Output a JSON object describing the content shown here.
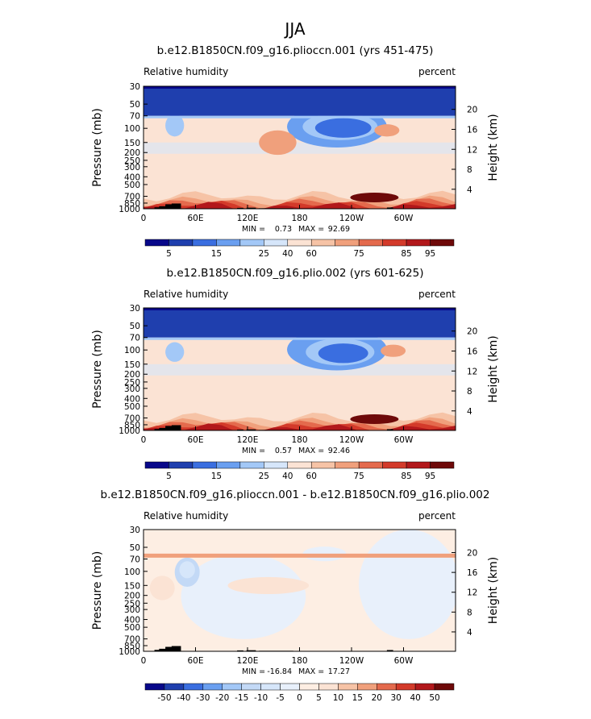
{
  "main_title": "JJA",
  "chart_data": [
    {
      "type": "heatmap",
      "title": "b.e12.B1850CN.f09_g16.plioccn.001 (yrs 451-475)",
      "left_label": "Relative humidity",
      "right_label": "percent",
      "ylabel": "Pressure (mb)",
      "ylabel_right": "Height (km)",
      "x_ticks": [
        "0",
        "60E",
        "120E",
        "180",
        "120W",
        "60W"
      ],
      "y_ticks": [
        "30",
        "50",
        "70",
        "100",
        "150",
        "200",
        "250",
        "300",
        "400",
        "500",
        "700",
        "850",
        "1000"
      ],
      "height_ticks": [
        "20",
        "16",
        "12",
        "8",
        "4"
      ],
      "stats": {
        "min_label": "MIN =",
        "min": "0.73",
        "max_label": "MAX =",
        "max": "92.69"
      },
      "colorbar_levels": [
        "5",
        "15",
        "25",
        "40",
        "60",
        "75",
        "85",
        "95"
      ],
      "colorbar_colors": [
        "#08088a",
        "#1f3fae",
        "#3a6ee0",
        "#6a9ff0",
        "#a3c8f7",
        "#d6e6fa",
        "#fbe3d4",
        "#f6c3a6",
        "#f0a07c",
        "#e46a4d",
        "#d33a2a",
        "#b2181b",
        "#6e0909"
      ],
      "contours": [
        {
          "level": 15,
          "cx": 0.62,
          "cy": 0.33,
          "rx": 0.16,
          "ry": 0.17
        },
        {
          "level": 25,
          "cx": 0.63,
          "cy": 0.33,
          "rx": 0.12,
          "ry": 0.11
        },
        {
          "level": 5,
          "cx": 0.64,
          "cy": 0.34,
          "rx": 0.09,
          "ry": 0.08
        },
        {
          "level": 25,
          "cx": 0.1,
          "cy": 0.32,
          "rx": 0.03,
          "ry": 0.09
        },
        {
          "level": 85,
          "cx": 0.2,
          "cy": 0.15,
          "rx": 0.06,
          "ry": 0.06
        },
        {
          "level": 75,
          "cx": 0.43,
          "cy": 0.46,
          "rx": 0.06,
          "ry": 0.1
        },
        {
          "level": 75,
          "cx": 0.78,
          "cy": 0.36,
          "rx": 0.04,
          "ry": 0.05
        }
      ]
    },
    {
      "type": "heatmap",
      "title": "b.e12.B1850CN.f09_g16.plio.002 (yrs 601-625)",
      "left_label": "Relative humidity",
      "right_label": "percent",
      "ylabel": "Pressure (mb)",
      "ylabel_right": "Height (km)",
      "x_ticks": [
        "0",
        "60E",
        "120E",
        "180",
        "120W",
        "60W"
      ],
      "y_ticks": [
        "30",
        "50",
        "70",
        "100",
        "150",
        "200",
        "250",
        "300",
        "400",
        "500",
        "700",
        "850",
        "1000"
      ],
      "height_ticks": [
        "20",
        "16",
        "12",
        "8",
        "4"
      ],
      "stats": {
        "min_label": "MIN =",
        "min": "0.57",
        "max_label": "MAX =",
        "max": "92.46"
      },
      "colorbar_levels": [
        "5",
        "15",
        "25",
        "40",
        "60",
        "75",
        "85",
        "95"
      ],
      "colorbar_colors": [
        "#08088a",
        "#1f3fae",
        "#3a6ee0",
        "#6a9ff0",
        "#a3c8f7",
        "#d6e6fa",
        "#fbe3d4",
        "#f6c3a6",
        "#f0a07c",
        "#e46a4d",
        "#d33a2a",
        "#b2181b",
        "#6e0909"
      ],
      "contours": [
        {
          "level": 15,
          "cx": 0.62,
          "cy": 0.34,
          "rx": 0.16,
          "ry": 0.17
        },
        {
          "level": 25,
          "cx": 0.63,
          "cy": 0.36,
          "rx": 0.11,
          "ry": 0.11
        },
        {
          "level": 5,
          "cx": 0.64,
          "cy": 0.37,
          "rx": 0.08,
          "ry": 0.08
        },
        {
          "level": 25,
          "cx": 0.1,
          "cy": 0.36,
          "rx": 0.03,
          "ry": 0.08
        },
        {
          "level": 85,
          "cx": 0.2,
          "cy": 0.15,
          "rx": 0.06,
          "ry": 0.06
        },
        {
          "level": 75,
          "cx": 0.8,
          "cy": 0.35,
          "rx": 0.04,
          "ry": 0.05
        }
      ]
    },
    {
      "type": "heatmap",
      "title": "b.e12.B1850CN.f09_g16.plioccn.001 - b.e12.B1850CN.f09_g16.plio.002",
      "left_label": "Relative humidity",
      "right_label": "percent",
      "ylabel": "Pressure (mb)",
      "ylabel_right": "Height (km)",
      "x_ticks": [
        "0",
        "60E",
        "120E",
        "180",
        "120W",
        "60W"
      ],
      "y_ticks": [
        "30",
        "50",
        "70",
        "100",
        "150",
        "200",
        "250",
        "300",
        "400",
        "500",
        "700",
        "850",
        "1000"
      ],
      "height_ticks": [
        "20",
        "16",
        "12",
        "8",
        "4"
      ],
      "stats": {
        "min_label": "MIN =",
        "min": "-16.84",
        "max_label": "MAX =",
        "max": "17.27"
      },
      "colorbar_levels": [
        "-50",
        "-40",
        "-30",
        "-20",
        "-15",
        "-10",
        "-5",
        "0",
        "5",
        "10",
        "15",
        "20",
        "30",
        "40",
        "50"
      ],
      "colorbar_colors": [
        "#08088a",
        "#1f3fae",
        "#3a6ee0",
        "#6a9ff0",
        "#a3c8f7",
        "#c3d9f6",
        "#d6e6fa",
        "#e8f0fb",
        "#fdeee3",
        "#fbe3d4",
        "#f6c3a6",
        "#f0a07c",
        "#e46a4d",
        "#d33a2a",
        "#b2181b",
        "#6e0909"
      ],
      "contours": [
        {
          "level": -15,
          "cx": 0.14,
          "cy": 0.35,
          "rx": 0.04,
          "ry": 0.12
        },
        {
          "level": -10,
          "cx": 0.14,
          "cy": 0.33,
          "rx": 0.025,
          "ry": 0.07
        },
        {
          "level": 5,
          "cx": 0.06,
          "cy": 0.48,
          "rx": 0.04,
          "ry": 0.1
        },
        {
          "level": 5,
          "cx": 0.4,
          "cy": 0.46,
          "rx": 0.13,
          "ry": 0.07
        },
        {
          "level": -5,
          "cx": 0.58,
          "cy": 0.2,
          "rx": 0.07,
          "ry": 0.06
        },
        {
          "level": -5,
          "cx": 0.8,
          "cy": 0.3,
          "rx": 0.06,
          "ry": 0.05
        }
      ]
    }
  ]
}
